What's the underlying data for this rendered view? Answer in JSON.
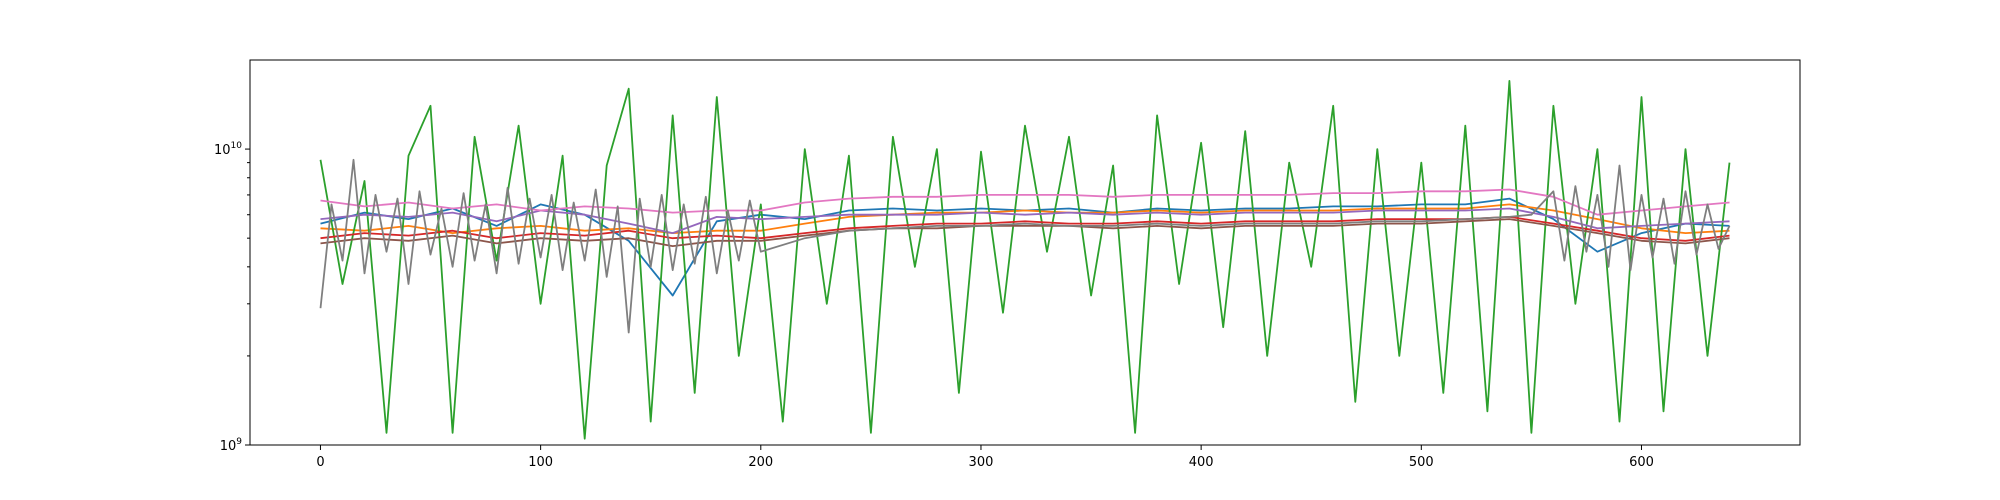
{
  "chart_data": {
    "type": "line",
    "title": "",
    "xlabel": "",
    "ylabel": "",
    "xlim": [
      -32,
      672
    ],
    "ylim": [
      1000000000,
      20000000000
    ],
    "yscale": "log",
    "grid": false,
    "legend": "none",
    "x_ticks": [
      {
        "value": 0,
        "label": "0"
      },
      {
        "value": 100,
        "label": "100"
      },
      {
        "value": 200,
        "label": "200"
      },
      {
        "value": 300,
        "label": "300"
      },
      {
        "value": 400,
        "label": "400"
      },
      {
        "value": 500,
        "label": "500"
      },
      {
        "value": 600,
        "label": "600"
      }
    ],
    "y_ticks": [
      {
        "value": 1000000000,
        "base": "10",
        "exp": "9"
      },
      {
        "value": 10000000000,
        "base": "10",
        "exp": "10"
      }
    ],
    "series": [
      {
        "color": "#1f77b4",
        "x": [
          0,
          20,
          40,
          60,
          80,
          100,
          120,
          140,
          160,
          180,
          200,
          220,
          240,
          260,
          280,
          300,
          320,
          340,
          360,
          380,
          400,
          420,
          440,
          460,
          480,
          500,
          520,
          540,
          560,
          580,
          600,
          620,
          640
        ],
        "y": [
          5600000000,
          6100000000,
          5800000000,
          6300000000,
          5500000000,
          6500000000,
          6000000000,
          4900000000,
          3200000000,
          5700000000,
          6000000000,
          5800000000,
          6200000000,
          6300000000,
          6200000000,
          6300000000,
          6200000000,
          6300000000,
          6100000000,
          6300000000,
          6200000000,
          6300000000,
          6300000000,
          6400000000,
          6400000000,
          6500000000,
          6500000000,
          6800000000,
          5800000000,
          4500000000,
          5200000000,
          5600000000,
          5500000000
        ]
      },
      {
        "color": "#ff7f0e",
        "x": [
          0,
          20,
          40,
          60,
          80,
          100,
          120,
          140,
          160,
          180,
          200,
          220,
          240,
          260,
          280,
          300,
          320,
          340,
          360,
          380,
          400,
          420,
          440,
          460,
          480,
          500,
          520,
          540,
          560,
          580,
          600,
          620,
          640
        ],
        "y": [
          5400000000,
          5300000000,
          5500000000,
          5200000000,
          5400000000,
          5500000000,
          5300000000,
          5400000000,
          5200000000,
          5300000000,
          5300000000,
          5600000000,
          5900000000,
          6000000000,
          6100000000,
          6100000000,
          6200000000,
          6100000000,
          6100000000,
          6200000000,
          6100000000,
          6200000000,
          6200000000,
          6200000000,
          6300000000,
          6300000000,
          6300000000,
          6500000000,
          6200000000,
          5800000000,
          5400000000,
          5200000000,
          5300000000
        ]
      },
      {
        "color": "#2ca02c",
        "x": [
          0,
          10,
          20,
          30,
          40,
          50,
          60,
          70,
          80,
          90,
          100,
          110,
          120,
          130,
          140,
          150,
          160,
          170,
          180,
          190,
          200,
          210,
          220,
          230,
          240,
          250,
          260,
          270,
          280,
          290,
          300,
          310,
          320,
          330,
          340,
          350,
          360,
          370,
          380,
          390,
          400,
          410,
          420,
          430,
          440,
          450,
          460,
          470,
          480,
          490,
          500,
          510,
          520,
          530,
          540,
          550,
          560,
          570,
          580,
          590,
          600,
          610,
          620,
          630,
          640
        ],
        "y": [
          9200000000,
          3500000000,
          7800000000,
          1100000000,
          9500000000,
          14000000000,
          1100000000,
          11000000000,
          4200000000,
          12000000000,
          3000000000,
          9500000000,
          1050000000,
          8800000000,
          16000000000,
          1200000000,
          13000000000,
          1500000000,
          15000000000,
          2000000000,
          6500000000,
          1200000000,
          10000000000,
          3000000000,
          9500000000,
          1100000000,
          11000000000,
          4000000000,
          10000000000,
          1500000000,
          9800000000,
          2800000000,
          12000000000,
          4500000000,
          11000000000,
          3200000000,
          8800000000,
          1100000000,
          13000000000,
          3500000000,
          10500000000,
          2500000000,
          11500000000,
          2000000000,
          9000000000,
          4000000000,
          14000000000,
          1400000000,
          10000000000,
          2000000000,
          9000000000,
          1500000000,
          12000000000,
          1300000000,
          17000000000,
          1100000000,
          14000000000,
          3000000000,
          10000000000,
          1200000000,
          15000000000,
          1300000000,
          10000000000,
          2000000000,
          9000000000
        ]
      },
      {
        "color": "#d62728",
        "x": [
          0,
          20,
          40,
          60,
          80,
          100,
          120,
          140,
          160,
          180,
          200,
          220,
          240,
          260,
          280,
          300,
          320,
          340,
          360,
          380,
          400,
          420,
          440,
          460,
          480,
          500,
          520,
          540,
          560,
          580,
          600,
          620,
          640
        ],
        "y": [
          5000000000,
          5200000000,
          5100000000,
          5300000000,
          5000000000,
          5200000000,
          5100000000,
          5300000000,
          5000000000,
          5100000000,
          5000000000,
          5200000000,
          5400000000,
          5500000000,
          5600000000,
          5600000000,
          5700000000,
          5600000000,
          5600000000,
          5700000000,
          5600000000,
          5700000000,
          5700000000,
          5700000000,
          5800000000,
          5800000000,
          5800000000,
          5900000000,
          5600000000,
          5300000000,
          5000000000,
          4900000000,
          5100000000
        ]
      },
      {
        "color": "#9467bd",
        "x": [
          0,
          20,
          40,
          60,
          80,
          100,
          120,
          140,
          160,
          180,
          200,
          220,
          240,
          260,
          280,
          300,
          320,
          340,
          360,
          380,
          400,
          420,
          440,
          460,
          480,
          500,
          520,
          540,
          560,
          580,
          600,
          620,
          640
        ],
        "y": [
          5800000000,
          6000000000,
          5900000000,
          6100000000,
          5700000000,
          6200000000,
          6000000000,
          5600000000,
          5200000000,
          5900000000,
          5800000000,
          5900000000,
          6000000000,
          6000000000,
          6000000000,
          6100000000,
          6000000000,
          6100000000,
          6000000000,
          6100000000,
          6000000000,
          6100000000,
          6100000000,
          6100000000,
          6200000000,
          6200000000,
          6200000000,
          6300000000,
          5900000000,
          5400000000,
          5500000000,
          5600000000,
          5700000000
        ]
      },
      {
        "color": "#8c564b",
        "x": [
          0,
          20,
          40,
          60,
          80,
          100,
          120,
          140,
          160,
          180,
          200,
          220,
          240,
          260,
          280,
          300,
          320,
          340,
          360,
          380,
          400,
          420,
          440,
          460,
          480,
          500,
          520,
          540,
          560,
          580,
          600,
          620,
          640
        ],
        "y": [
          4800000000,
          5000000000,
          4900000000,
          5100000000,
          4800000000,
          5000000000,
          4900000000,
          5000000000,
          4700000000,
          4900000000,
          4900000000,
          5100000000,
          5300000000,
          5400000000,
          5400000000,
          5500000000,
          5500000000,
          5500000000,
          5400000000,
          5500000000,
          5400000000,
          5500000000,
          5500000000,
          5500000000,
          5600000000,
          5600000000,
          5700000000,
          5800000000,
          5500000000,
          5200000000,
          4900000000,
          4800000000,
          5000000000
        ]
      },
      {
        "color": "#e377c2",
        "x": [
          0,
          20,
          40,
          60,
          80,
          100,
          120,
          140,
          160,
          180,
          200,
          220,
          240,
          260,
          280,
          300,
          320,
          340,
          360,
          380,
          400,
          420,
          440,
          460,
          480,
          500,
          520,
          540,
          560,
          580,
          600,
          620,
          640
        ],
        "y": [
          6700000000,
          6400000000,
          6600000000,
          6300000000,
          6500000000,
          6200000000,
          6400000000,
          6300000000,
          6100000000,
          6200000000,
          6200000000,
          6600000000,
          6800000000,
          6900000000,
          6900000000,
          7000000000,
          7000000000,
          7000000000,
          6900000000,
          7000000000,
          7000000000,
          7000000000,
          7000000000,
          7100000000,
          7100000000,
          7200000000,
          7200000000,
          7300000000,
          6900000000,
          6000000000,
          6200000000,
          6400000000,
          6600000000
        ]
      },
      {
        "color": "#7f7f7f",
        "x": [
          0,
          5,
          10,
          15,
          20,
          25,
          30,
          35,
          40,
          45,
          50,
          55,
          60,
          65,
          70,
          75,
          80,
          85,
          90,
          95,
          100,
          105,
          110,
          115,
          120,
          125,
          130,
          135,
          140,
          145,
          150,
          155,
          160,
          165,
          170,
          175,
          180,
          185,
          190,
          195,
          200,
          220,
          240,
          260,
          280,
          300,
          320,
          340,
          360,
          380,
          400,
          420,
          440,
          460,
          480,
          500,
          520,
          540,
          550,
          560,
          565,
          570,
          575,
          580,
          585,
          590,
          595,
          600,
          605,
          610,
          615,
          620,
          625,
          630,
          635,
          640
        ],
        "y": [
          2900000000,
          6500000000,
          4200000000,
          9200000000,
          3800000000,
          7000000000,
          4500000000,
          6800000000,
          3500000000,
          7200000000,
          4400000000,
          6300000000,
          4000000000,
          7100000000,
          4200000000,
          6500000000,
          3800000000,
          7400000000,
          4100000000,
          6800000000,
          4300000000,
          7000000000,
          3900000000,
          6600000000,
          4200000000,
          7300000000,
          3700000000,
          6400000000,
          2400000000,
          6800000000,
          4000000000,
          7000000000,
          3900000000,
          6500000000,
          4100000000,
          6900000000,
          3800000000,
          6200000000,
          4200000000,
          6700000000,
          4500000000,
          5000000000,
          5300000000,
          5400000000,
          5500000000,
          5500000000,
          5600000000,
          5500000000,
          5500000000,
          5600000000,
          5500000000,
          5600000000,
          5600000000,
          5600000000,
          5700000000,
          5700000000,
          5800000000,
          5900000000,
          6000000000,
          7200000000,
          4200000000,
          7500000000,
          4500000000,
          7000000000,
          4000000000,
          8800000000,
          3900000000,
          7000000000,
          4300000000,
          6800000000,
          4100000000,
          7200000000,
          4400000000,
          6500000000,
          4600000000,
          5500000000
        ]
      }
    ]
  }
}
